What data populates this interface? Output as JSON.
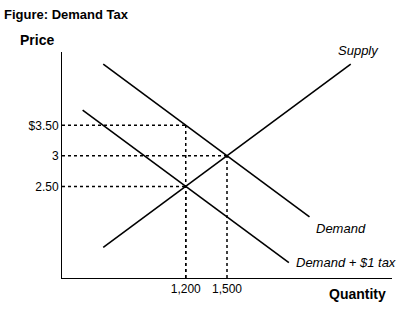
{
  "chart_data": {
    "type": "line",
    "title": "Figure: Demand Tax",
    "x_label": "Quantity",
    "y_label": "Price",
    "xlim": [
      300,
      2700
    ],
    "ylim": [
      1,
      4.7
    ],
    "xticks": [
      {
        "value": 1200,
        "label": "1,200"
      },
      {
        "value": 1500,
        "label": "1,500"
      }
    ],
    "yticks": [
      {
        "value": 3.5,
        "label": "$3.50"
      },
      3,
      {
        "value": 2.5,
        "label": "2.50"
      }
    ],
    "grid": false,
    "series": [
      {
        "name": "Supply",
        "color": "#000000",
        "line_style": "solid",
        "x": [
          600,
          2400
        ],
        "values": [
          1.5,
          4.5
        ]
      },
      {
        "name": "Demand",
        "color": "#000000",
        "line_style": "solid",
        "x": [
          600,
          2100
        ],
        "values": [
          4.5,
          2
        ]
      },
      {
        "name": "Demand + $1 tax",
        "color": "#000000",
        "line_style": "solid",
        "x": [
          450,
          1950
        ],
        "values": [
          3.75,
          1.25
        ]
      }
    ],
    "guides": [
      {
        "x": 1200,
        "y": 3.5
      },
      {
        "x": 1500,
        "y": 3
      },
      {
        "x": 1200,
        "y": 2.5
      }
    ]
  }
}
